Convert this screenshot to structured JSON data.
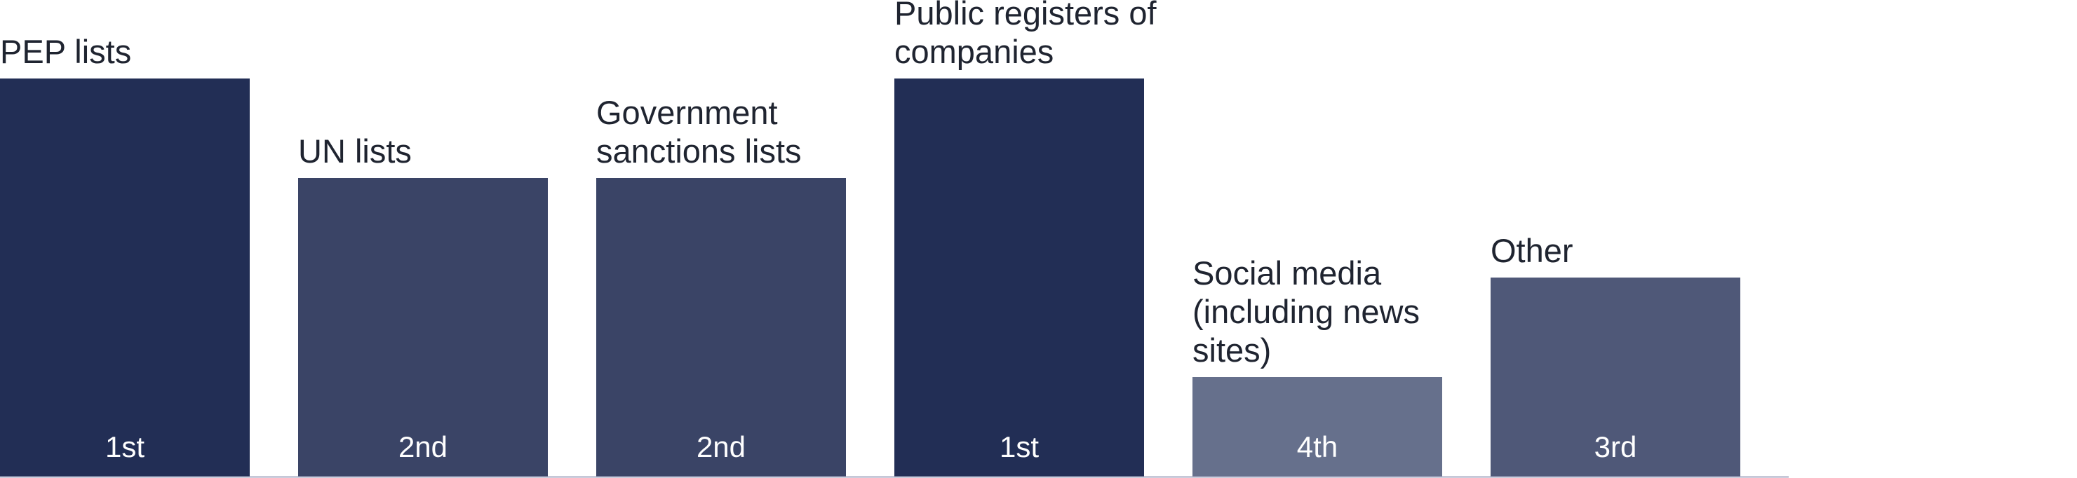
{
  "chart_data": {
    "type": "bar",
    "title": "",
    "xlabel": "",
    "ylabel": "",
    "categories": [
      [
        "PEP lists"
      ],
      [
        "UN lists"
      ],
      [
        "Government",
        "sanctions lists"
      ],
      [
        "Public registers of",
        "companies"
      ],
      [
        "Social media",
        "(including news",
        "sites)"
      ],
      [
        "Other"
      ]
    ],
    "values": [
      4,
      3,
      3,
      4,
      1,
      2
    ],
    "value_labels": [
      "1st",
      "2nd",
      "2nd",
      "1st",
      "4th",
      "3rd"
    ],
    "ylim": [
      0,
      4
    ],
    "grid": false,
    "colors": [
      "#222e55",
      "#3a4466",
      "#3a4466",
      "#222e55",
      "#66708c",
      "#4f5878"
    ],
    "baseline_color": "#a9adc4"
  }
}
